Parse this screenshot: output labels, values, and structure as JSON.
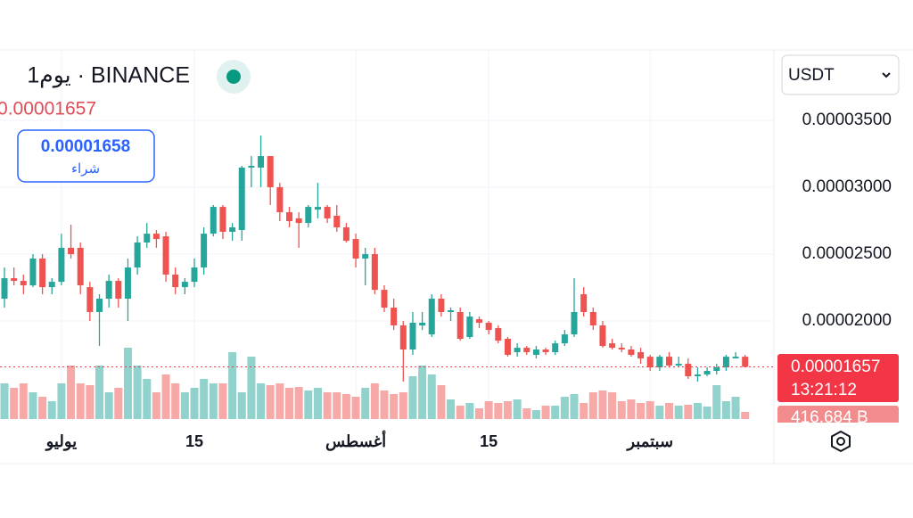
{
  "header": {
    "title": "1يوم · BINANCE",
    "last_price_label": "0.00001657",
    "currency": "USDT"
  },
  "buy_box": {
    "price": "0.00001658",
    "label": "شراء"
  },
  "price_marker": {
    "countdown": "13:21:12",
    "volume_label": "416,684 B"
  },
  "chart_data": {
    "type": "candlestick",
    "categories": [
      null,
      null,
      null,
      null,
      null,
      null,
      "يوليو",
      null,
      null,
      null,
      null,
      null,
      null,
      null,
      null,
      null,
      null,
      null,
      null,
      null,
      "15",
      null,
      null,
      null,
      null,
      null,
      null,
      null,
      null,
      null,
      null,
      null,
      null,
      null,
      null,
      null,
      null,
      "أغسطس",
      null,
      null,
      null,
      null,
      null,
      null,
      null,
      null,
      null,
      null,
      null,
      null,
      null,
      "15",
      null,
      null,
      null,
      null,
      null,
      null,
      null,
      null,
      null,
      null,
      null,
      null,
      null,
      null,
      null,
      null,
      "سبتمبر",
      null,
      null,
      null,
      null,
      null,
      null,
      null,
      null,
      null,
      null
    ],
    "ohlc": [
      [
        2.167e-05,
        2.4e-05,
        2.1e-05,
        2.32e-05
      ],
      [
        2.32e-05,
        2.4e-05,
        2.267e-05,
        2.3e-05
      ],
      [
        2.3e-05,
        2.347e-05,
        2.2e-05,
        2.267e-05
      ],
      [
        2.267e-05,
        2.5e-05,
        2.253e-05,
        2.467e-05
      ],
      [
        2.467e-05,
        2.5e-05,
        2.2e-05,
        2.253e-05
      ],
      [
        2.253e-05,
        2.32e-05,
        2.2e-05,
        2.293e-05
      ],
      [
        2.293e-05,
        2.653e-05,
        2.267e-05,
        2.547e-05
      ],
      [
        2.547e-05,
        2.72e-05,
        2.467e-05,
        2.5e-05
      ],
      [
        2.547e-05,
        2.587e-05,
        2.2e-05,
        2.267e-05
      ],
      [
        2.253e-05,
        2.293e-05,
        2e-05,
        2.067e-05
      ],
      [
        2.067e-05,
        2.2e-05,
        1.813e-05,
        2.167e-05
      ],
      [
        2.167e-05,
        2.347e-05,
        2.1e-05,
        2.3e-05
      ],
      [
        2.3e-05,
        2.32e-05,
        2.1e-05,
        2.167e-05
      ],
      [
        2.167e-05,
        2.467e-05,
        2e-05,
        2.4e-05
      ],
      [
        2.4e-05,
        2.633e-05,
        2.347e-05,
        2.587e-05
      ],
      [
        2.587e-05,
        2.733e-05,
        2.547e-05,
        2.653e-05
      ],
      [
        2.653e-05,
        2.68e-05,
        2.547e-05,
        2.613e-05
      ],
      [
        2.633e-05,
        2.667e-05,
        2.293e-05,
        2.347e-05
      ],
      [
        2.347e-05,
        2.4e-05,
        2.2e-05,
        2.253e-05
      ],
      [
        2.253e-05,
        2.32e-05,
        2.2e-05,
        2.293e-05
      ],
      [
        2.293e-05,
        2.467e-05,
        2.253e-05,
        2.4e-05
      ],
      [
        2.4e-05,
        2.7e-05,
        2.347e-05,
        2.653e-05
      ],
      [
        2.653e-05,
        2.867e-05,
        2.633e-05,
        2.853e-05
      ],
      [
        2.853e-05,
        2.867e-05,
        2.613e-05,
        2.667e-05
      ],
      [
        2.667e-05,
        2.733e-05,
        2.6e-05,
        2.7e-05
      ],
      [
        2.68e-05,
        3.16e-05,
        2.6e-05,
        3.147e-05
      ],
      [
        3.147e-05,
        3.233e-05,
        3e-05,
        3.16e-05
      ],
      [
        3.147e-05,
        3.387e-05,
        3e-05,
        3.233e-05
      ],
      [
        3.233e-05,
        3.233e-05,
        2.867e-05,
        3e-05
      ],
      [
        3e-05,
        3.033e-05,
        2.747e-05,
        2.813e-05
      ],
      [
        2.813e-05,
        2.853e-05,
        2.7e-05,
        2.747e-05
      ],
      [
        2.767e-05,
        2.813e-05,
        2.547e-05,
        2.733e-05
      ],
      [
        2.733e-05,
        2.867e-05,
        2.7e-05,
        2.853e-05
      ],
      [
        2.833e-05,
        3.033e-05,
        2.767e-05,
        2.853e-05
      ],
      [
        2.853e-05,
        2.867e-05,
        2.733e-05,
        2.767e-05
      ],
      [
        2.787e-05,
        2.867e-05,
        2.667e-05,
        2.7e-05
      ],
      [
        2.7e-05,
        2.733e-05,
        2.587e-05,
        2.6e-05
      ],
      [
        2.613e-05,
        2.653e-05,
        2.4e-05,
        2.467e-05
      ],
      [
        2.467e-05,
        2.547e-05,
        2.267e-05,
        2.5e-05
      ],
      [
        2.5e-05,
        2.547e-05,
        2.2e-05,
        2.233e-05
      ],
      [
        2.233e-05,
        2.267e-05,
        2.067e-05,
        2.1e-05
      ],
      [
        2.1e-05,
        2.167e-05,
        1.933e-05,
        1.967e-05
      ],
      [
        1.967e-05,
        2e-05,
        1.547e-05,
        1.787e-05
      ],
      [
        1.787e-05,
        2.067e-05,
        1.747e-05,
        1.987e-05
      ],
      [
        1.967e-05,
        2.067e-05,
        1.933e-05,
        1.987e-05
      ],
      [
        1.9e-05,
        2.2e-05,
        1.88e-05,
        2.167e-05
      ],
      [
        2.167e-05,
        2.2e-05,
        2.033e-05,
        2.067e-05
      ],
      [
        2.067e-05,
        2.1e-05,
        2e-05,
        2.08e-05
      ],
      [
        2.067e-05,
        2.1e-05,
        1.853e-05,
        1.867e-05
      ],
      [
        1.88e-05,
        2.067e-05,
        1.867e-05,
        2.033e-05
      ],
      [
        2.013e-05,
        2.033e-05,
        1.947e-05,
        1.987e-05
      ],
      [
        1.987e-05,
        2e-05,
        1.9e-05,
        1.933e-05
      ],
      [
        1.947e-05,
        1.967e-05,
        1.833e-05,
        1.853e-05
      ],
      [
        1.867e-05,
        1.88e-05,
        1.733e-05,
        1.747e-05
      ],
      [
        1.767e-05,
        1.833e-05,
        1.733e-05,
        1.8e-05
      ],
      [
        1.8e-05,
        1.813e-05,
        1.747e-05,
        1.767e-05
      ],
      [
        1.747e-05,
        1.813e-05,
        1.72e-05,
        1.787e-05
      ],
      [
        1.787e-05,
        1.8e-05,
        1.747e-05,
        1.767e-05
      ],
      [
        1.767e-05,
        1.853e-05,
        1.747e-05,
        1.833e-05
      ],
      [
        1.833e-05,
        1.933e-05,
        1.813e-05,
        1.9e-05
      ],
      [
        1.9e-05,
        2.32e-05,
        1.88e-05,
        2.067e-05
      ],
      [
        2.2e-05,
        2.253e-05,
        2.033e-05,
        2.067e-05
      ],
      [
        2.067e-05,
        2.1e-05,
        1.933e-05,
        1.967e-05
      ],
      [
        1.967e-05,
        2e-05,
        1.8e-05,
        1.813e-05
      ],
      [
        1.833e-05,
        1.867e-05,
        1.787e-05,
        1.8e-05
      ],
      [
        1.8e-05,
        1.833e-05,
        1.767e-05,
        1.787e-05
      ],
      [
        1.787e-05,
        1.813e-05,
        1.733e-05,
        1.747e-05
      ],
      [
        1.767e-05,
        1.8e-05,
        1.68e-05,
        1.72e-05
      ],
      [
        1.733e-05,
        1.747e-05,
        1.627e-05,
        1.653e-05
      ],
      [
        1.653e-05,
        1.747e-05,
        1.627e-05,
        1.733e-05
      ],
      [
        1.733e-05,
        1.767e-05,
        1.653e-05,
        1.667e-05
      ],
      [
        1.667e-05,
        1.733e-05,
        1.653e-05,
        1.68e-05
      ],
      [
        1.68e-05,
        1.72e-05,
        1.567e-05,
        1.587e-05
      ],
      [
        1.587e-05,
        1.653e-05,
        1.547e-05,
        1.6e-05
      ],
      [
        1.6e-05,
        1.653e-05,
        1.587e-05,
        1.627e-05
      ],
      [
        1.627e-05,
        1.68e-05,
        1.6e-05,
        1.653e-05
      ],
      [
        1.653e-05,
        1.747e-05,
        1.627e-05,
        1.733e-05
      ],
      [
        1.72e-05,
        1.767e-05,
        1.72e-05,
        1.733e-05
      ],
      [
        1.733e-05,
        1.747e-05,
        1.653e-05,
        1.657e-05
      ]
    ],
    "volume": [
      2080000,
      1820000,
      2080000,
      1560000,
      1300000,
      1040000,
      2080000,
      3120000,
      2080000,
      1976000,
      3120000,
      1560000,
      1820000,
      4160000,
      3120000,
      2340000,
      1560000,
      2600000,
      2080000,
      1560000,
      1820000,
      2340000,
      2080000,
      2080000,
      3900000,
      1560000,
      3640000,
      2080000,
      1976000,
      2080000,
      1820000,
      1872000,
      1664000,
      1820000,
      1560000,
      1560000,
      1456000,
      1300000,
      1820000,
      2080000,
      1664000,
      1456000,
      1560000,
      2496000,
      3120000,
      2600000,
      1976000,
      1144000,
      780000,
      936000,
      624000,
      1040000,
      936000,
      1040000,
      1144000,
      624000,
      520000,
      780000,
      780000,
      1300000,
      1456000,
      936000,
      1560000,
      1664000,
      1560000,
      1040000,
      1144000,
      936000,
      1040000,
      780000,
      936000,
      780000,
      832000,
      936000,
      728000,
      1976000,
      1040000,
      1300000,
      416684
    ],
    "up_color": "#26a69a",
    "down_color": "#ef5350",
    "ylim": [
      1.267e-05,
      4e-05
    ],
    "yticks": [
      {
        "value": 3.5e-05,
        "label": "0.00003500"
      },
      {
        "value": 3e-05,
        "label": "0.00003000"
      },
      {
        "value": 2.5e-05,
        "label": "0.00002500"
      },
      {
        "value": 2e-05,
        "label": "0.00002000"
      }
    ],
    "grid": true
  }
}
